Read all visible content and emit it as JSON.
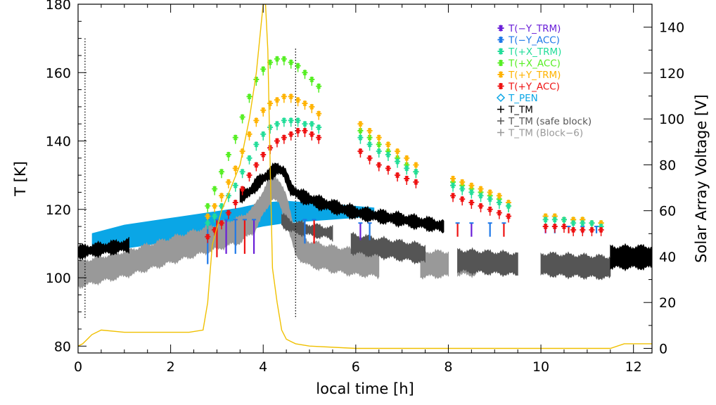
{
  "chart_data": {
    "type": "scatter",
    "title": "",
    "xlabel": "local time [h]",
    "ylabel_left": "T [K]",
    "ylabel_right": "Solar Array Voltage [V]",
    "xlim": [
      0,
      12.4
    ],
    "ylim_left": [
      78,
      180
    ],
    "ylim_right": [
      -2,
      150
    ],
    "x_ticks": [
      "0",
      "2",
      "4",
      "6",
      "8",
      "10",
      "12"
    ],
    "y_ticks_left": [
      "80",
      "100",
      "120",
      "140",
      "160",
      "180"
    ],
    "y_ticks_right": [
      "0",
      "20",
      "40",
      "60",
      "80",
      "100",
      "120",
      "140"
    ],
    "grid": false,
    "legend_position": "top-right",
    "legend": [
      {
        "marker": "*",
        "label": "T(−Y_TRM)",
        "color": "#6a1fd8"
      },
      {
        "marker": "*",
        "label": "T(−Y_ACC)",
        "color": "#1e78e8"
      },
      {
        "marker": "*",
        "label": "T(+X_TRM)",
        "color": "#22dd99"
      },
      {
        "marker": "*",
        "label": "T(+X_ACC)",
        "color": "#55ee22"
      },
      {
        "marker": "*",
        "label": "T(+Y_TRM)",
        "color": "#ffb300"
      },
      {
        "marker": "*",
        "label": "T(+Y_ACC)",
        "color": "#ee1111"
      },
      {
        "marker": "◇",
        "label": "T_PEN",
        "color": "#0aa6e6"
      },
      {
        "marker": "+",
        "label": "T_TM",
        "color": "#000000"
      },
      {
        "marker": "+",
        "label": "T_TM (safe block)",
        "color": "#555555"
      },
      {
        "marker": "+",
        "label": "T_TM (Block−6)",
        "color": "#999999"
      }
    ],
    "markers_vertical_dotted": [
      0.15,
      4.7
    ],
    "series_voltage": {
      "axis": "right",
      "color": "#f0c000",
      "x": [
        0,
        0.1,
        0.3,
        0.5,
        1.0,
        1.5,
        2.0,
        2.4,
        2.7,
        2.8,
        2.9,
        3.1,
        3.3,
        3.5,
        3.7,
        3.85,
        3.95,
        4.0,
        4.05,
        4.1,
        4.15,
        4.2,
        4.3,
        4.4,
        4.5,
        4.6,
        4.7,
        5.0,
        6.0,
        8.0,
        10.0,
        11.5,
        11.8,
        12.0,
        12.4
      ],
      "y": [
        1,
        2,
        6,
        8,
        7,
        7,
        7,
        7,
        8,
        20,
        45,
        60,
        70,
        80,
        100,
        120,
        140,
        150,
        150,
        130,
        80,
        35,
        20,
        8,
        4,
        3,
        2,
        1,
        0,
        0,
        0,
        0,
        2,
        2,
        2
      ]
    },
    "series_T_PEN": {
      "color": "#0aa6e6",
      "x": [
        0.3,
        1,
        2,
        3,
        3.5,
        4.0,
        4.5,
        5,
        5.5,
        6,
        6.4
      ],
      "upper": [
        113,
        115.5,
        117.5,
        119.5,
        120.5,
        122,
        122.5,
        122,
        121.5,
        121,
        120.5
      ],
      "lower": [
        107,
        108.5,
        110.5,
        112.5,
        113.5,
        115,
        116,
        116.5,
        117,
        117.5,
        118
      ]
    },
    "series_T_TM": {
      "color": "#000000",
      "segments": [
        {
          "x": [
            0,
            1.1
          ],
          "center": [
            107.5,
            109.5
          ],
          "width": 3
        },
        {
          "x": [
            3.5,
            3.7,
            3.9,
            4.1,
            4.3,
            4.45,
            4.6,
            4.8,
            5.2,
            6.0,
            7.0,
            7.9
          ],
          "center": [
            124,
            125,
            128,
            130,
            132,
            131,
            126,
            124,
            122,
            119,
            117,
            115
          ],
          "width": 3
        },
        {
          "x": [
            11.5,
            12.4
          ],
          "center": [
            106,
            106
          ],
          "width": 6
        }
      ]
    },
    "series_T_TM_safe": {
      "color": "#555555",
      "segments": [
        {
          "x": [
            4.4,
            4.6,
            5.0,
            5.5
          ],
          "center": [
            117,
            115,
            114,
            113
          ],
          "width": 3
        },
        {
          "x": [
            5.9,
            7.5
          ],
          "center": [
            110,
            107
          ],
          "width": 5
        },
        {
          "x": [
            8.2,
            9.5
          ],
          "center": [
            105,
            104
          ],
          "width": 6
        },
        {
          "x": [
            10.0,
            11.5
          ],
          "center": [
            104,
            103
          ],
          "width": 6
        }
      ]
    },
    "series_T_TM_block6": {
      "color": "#999999",
      "segments": [
        {
          "x": [
            0,
            0.5,
            1.0,
            1.5,
            2.0,
            2.5,
            3.0,
            3.5,
            3.8,
            4.0,
            4.2,
            4.35,
            4.5,
            4.7,
            5.0,
            5.5,
            6.0,
            6.5
          ],
          "center": [
            101,
            102.5,
            104,
            106,
            108,
            110,
            112,
            114,
            117,
            122,
            127,
            125,
            120,
            110,
            107,
            105.5,
            104.5,
            104
          ],
          "width": 7
        },
        {
          "x": [
            7.4,
            8.0
          ],
          "center": [
            104,
            104
          ],
          "width": 7
        },
        {
          "x": [
            8.2,
            8.6
          ],
          "center": [
            104,
            104
          ],
          "width": 6
        }
      ]
    },
    "series_spikes": {
      "colors": [
        "#1e78e8",
        "#ee1111",
        "#6a1fd8"
      ],
      "x": [
        2.8,
        3.0,
        3.2,
        3.4,
        3.6,
        3.8,
        4.9,
        5.1,
        6.1,
        6.3,
        8.2,
        8.5,
        8.9,
        9.2,
        10.1,
        10.3,
        10.6,
        10.9,
        11.2
      ],
      "top": [
        118,
        117,
        117,
        117,
        117,
        117,
        117,
        117,
        116,
        116,
        116,
        116,
        116,
        116,
        115,
        115,
        115,
        115,
        115
      ],
      "bottom": [
        104,
        106,
        107,
        107,
        107,
        107,
        110,
        110,
        111,
        111,
        112,
        112,
        112,
        112,
        113,
        113,
        113,
        113,
        113
      ]
    },
    "series_stars": [
      {
        "name": "T(+X_ACC)",
        "color": "#55ee22",
        "x": [
          2.8,
          2.95,
          3.1,
          3.25,
          3.4,
          3.55,
          3.7,
          3.85,
          4.0,
          4.15,
          4.3,
          4.45,
          4.6,
          4.75,
          4.9,
          5.05,
          5.2,
          6.1,
          6.3,
          6.5,
          6.7,
          6.9,
          7.1,
          7.3,
          8.1,
          8.3,
          8.5,
          8.7,
          8.9,
          9.1,
          9.3,
          10.1,
          10.3,
          10.5,
          10.7,
          10.9,
          11.1,
          11.3
        ],
        "y": [
          121,
          126,
          131,
          136,
          141,
          147,
          153,
          158,
          161,
          163,
          164,
          164,
          163,
          162,
          160,
          158,
          156,
          143,
          141,
          139,
          137,
          135,
          133,
          131,
          128,
          127,
          126,
          125,
          124,
          123,
          121,
          118,
          118,
          117,
          117,
          117,
          116,
          116
        ]
      },
      {
        "name": "T(+Y_TRM)",
        "color": "#ffb300",
        "x": [
          2.8,
          2.95,
          3.1,
          3.25,
          3.4,
          3.55,
          3.7,
          3.85,
          4.0,
          4.15,
          4.3,
          4.45,
          4.6,
          4.75,
          4.9,
          5.05,
          5.2,
          6.1,
          6.3,
          6.5,
          6.7,
          6.9,
          7.1,
          7.3,
          8.1,
          8.3,
          8.5,
          8.7,
          8.9,
          9.1,
          9.3,
          10.1,
          10.3,
          10.5,
          10.7,
          10.9,
          11.1,
          11.3
        ],
        "y": [
          118,
          121,
          124,
          128,
          132,
          137,
          142,
          146,
          149,
          151,
          152,
          153,
          153,
          152,
          151,
          150,
          148,
          145,
          143,
          141,
          139,
          137,
          135,
          133,
          129,
          128,
          127,
          126,
          125,
          124,
          122,
          118,
          118,
          117,
          117,
          117,
          116,
          116
        ]
      },
      {
        "name": "T(+X_TRM)",
        "color": "#22dd99",
        "x": [
          2.8,
          2.95,
          3.1,
          3.25,
          3.4,
          3.55,
          3.7,
          3.85,
          4.0,
          4.15,
          4.3,
          4.45,
          4.6,
          4.75,
          4.9,
          5.05,
          5.2,
          6.1,
          6.3,
          6.5,
          6.7,
          6.9,
          7.1,
          7.3,
          8.1,
          8.3,
          8.5,
          8.7,
          8.9,
          9.1,
          9.3,
          10.1,
          10.3,
          10.5,
          10.7,
          10.9,
          11.1,
          11.3
        ],
        "y": [
          116,
          118,
          121,
          124,
          127,
          131,
          135,
          139,
          142,
          144,
          145,
          146,
          146,
          146,
          145,
          145,
          144,
          141,
          139,
          137,
          136,
          134,
          132,
          131,
          127,
          126,
          125,
          124,
          123,
          122,
          121,
          117,
          117,
          117,
          116,
          116,
          116,
          115
        ]
      },
      {
        "name": "T(+Y_ACC)",
        "color": "#ee1111",
        "x": [
          2.8,
          2.95,
          3.1,
          3.25,
          3.4,
          3.55,
          3.7,
          3.85,
          4.0,
          4.15,
          4.3,
          4.45,
          4.6,
          4.75,
          4.9,
          5.05,
          5.2,
          6.1,
          6.3,
          6.5,
          6.7,
          6.9,
          7.1,
          7.3,
          8.1,
          8.3,
          8.5,
          8.7,
          8.9,
          9.1,
          9.3,
          10.1,
          10.3,
          10.5,
          10.7,
          10.9,
          11.1,
          11.3
        ],
        "y": [
          112,
          114,
          116,
          119,
          122,
          126,
          130,
          133,
          136,
          138,
          140,
          141,
          142,
          143,
          143,
          142,
          141,
          137,
          135,
          133,
          132,
          130,
          129,
          128,
          124,
          123,
          122,
          121,
          120,
          119,
          118,
          115,
          115,
          115,
          114,
          114,
          114,
          114
        ]
      }
    ]
  }
}
